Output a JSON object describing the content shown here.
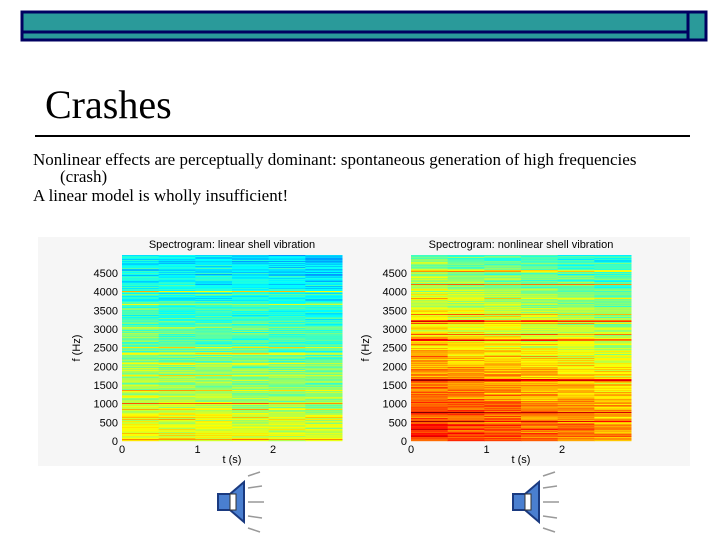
{
  "title": "Crashes",
  "body": {
    "lines": [
      "Nonlinear effects are perceptually dominant: spontaneous generation of high frequencies",
      "(crash)",
      "A linear model is wholly insufficient!"
    ]
  },
  "figures": [
    {
      "title": "Spectrogram: linear shell vibration",
      "ylabel": "f (Hz)",
      "xlabel": "t (s)",
      "yticks": [
        0,
        500,
        1000,
        1500,
        2000,
        2500,
        3000,
        3500,
        4000,
        4500
      ],
      "xticks": [
        0,
        1,
        2
      ]
    },
    {
      "title": "Spectrogram: nonlinear shell vibration",
      "ylabel": "f (Hz)",
      "xlabel": "t (s)",
      "yticks": [
        0,
        500,
        1000,
        1500,
        2000,
        2500,
        3000,
        3500,
        4000,
        4500
      ],
      "xticks": [
        0,
        1,
        2
      ]
    }
  ]
}
